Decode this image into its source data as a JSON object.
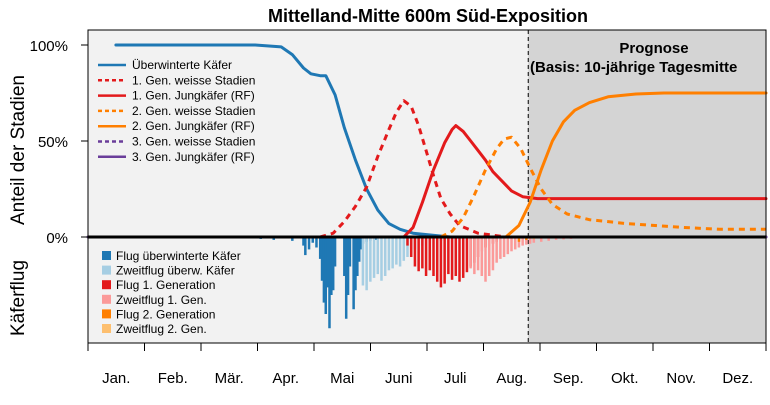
{
  "chart_data": {
    "type": "line",
    "title": "Mittelland-Mitte 600m Süd-Exposition",
    "forecast_label": [
      "Prognose",
      "(Basis: 10-jährige Tagesmitte"
    ],
    "upper_panel": {
      "ylabel": "Anteil der Stadien",
      "yticks": [
        "100%",
        "50%",
        "0%"
      ],
      "ylim": [
        0,
        1.06
      ],
      "series": [
        {
          "name": "Überwinterte Käfer",
          "color": "#1f78b4",
          "dash": "solid",
          "points": [
            [
              15,
              1.0
            ],
            [
              60,
              1.0
            ],
            [
              90,
              1.0
            ],
            [
              104,
              0.99
            ],
            [
              110,
              0.95
            ],
            [
              116,
              0.88
            ],
            [
              120,
              0.85
            ],
            [
              125,
              0.84
            ],
            [
              128,
              0.84
            ],
            [
              133,
              0.74
            ],
            [
              138,
              0.57
            ],
            [
              144,
              0.4
            ],
            [
              150,
              0.25
            ],
            [
              156,
              0.14
            ],
            [
              162,
              0.07
            ],
            [
              168,
              0.04
            ],
            [
              175,
              0.02
            ],
            [
              185,
              0.01
            ],
            [
              195,
              0.0
            ],
            [
              365,
              0.0
            ]
          ]
        },
        {
          "name": "1. Gen. weisse Stadien",
          "color": "#e31a1c",
          "dash": "dotted",
          "points": [
            [
              125,
              0.0
            ],
            [
              132,
              0.02
            ],
            [
              138,
              0.08
            ],
            [
              144,
              0.16
            ],
            [
              150,
              0.26
            ],
            [
              156,
              0.42
            ],
            [
              162,
              0.56
            ],
            [
              166,
              0.65
            ],
            [
              170,
              0.71
            ],
            [
              174,
              0.68
            ],
            [
              178,
              0.58
            ],
            [
              182,
              0.45
            ],
            [
              186,
              0.32
            ],
            [
              190,
              0.2
            ],
            [
              195,
              0.12
            ],
            [
              200,
              0.06
            ],
            [
              210,
              0.02
            ],
            [
              225,
              0.0
            ],
            [
              365,
              0.0
            ]
          ]
        },
        {
          "name": "1. Gen. Jungkäfer (RF)",
          "color": "#e31a1c",
          "dash": "solid",
          "points": [
            [
              170,
              0.0
            ],
            [
              175,
              0.05
            ],
            [
              180,
              0.18
            ],
            [
              186,
              0.35
            ],
            [
              192,
              0.49
            ],
            [
              196,
              0.56
            ],
            [
              198,
              0.58
            ],
            [
              202,
              0.55
            ],
            [
              206,
              0.5
            ],
            [
              210,
              0.45
            ],
            [
              214,
              0.4
            ],
            [
              218,
              0.34
            ],
            [
              222,
              0.3
            ],
            [
              228,
              0.24
            ],
            [
              234,
              0.21
            ],
            [
              242,
              0.2
            ],
            [
              260,
              0.2
            ],
            [
              300,
              0.2
            ],
            [
              365,
              0.2
            ]
          ]
        },
        {
          "name": "2. Gen. weisse Stadien",
          "color": "#ff7f00",
          "dash": "dotted",
          "points": [
            [
              190,
              0.0
            ],
            [
              196,
              0.03
            ],
            [
              202,
              0.1
            ],
            [
              208,
              0.22
            ],
            [
              214,
              0.35
            ],
            [
              220,
              0.46
            ],
            [
              224,
              0.51
            ],
            [
              228,
              0.52
            ],
            [
              233,
              0.46
            ],
            [
              238,
              0.36
            ],
            [
              244,
              0.25
            ],
            [
              250,
              0.17
            ],
            [
              258,
              0.12
            ],
            [
              270,
              0.09
            ],
            [
              290,
              0.07
            ],
            [
              320,
              0.05
            ],
            [
              340,
              0.04
            ],
            [
              365,
              0.04
            ]
          ]
        },
        {
          "name": "2. Gen. Jungkäfer (RF)",
          "color": "#ff7f00",
          "dash": "solid",
          "points": [
            [
              225,
              0.0
            ],
            [
              232,
              0.06
            ],
            [
              238,
              0.18
            ],
            [
              244,
              0.35
            ],
            [
              250,
              0.5
            ],
            [
              256,
              0.6
            ],
            [
              262,
              0.66
            ],
            [
              270,
              0.7
            ],
            [
              280,
              0.73
            ],
            [
              295,
              0.745
            ],
            [
              310,
              0.75
            ],
            [
              365,
              0.75
            ]
          ]
        },
        {
          "name": "3. Gen. weisse Stadien",
          "color": "#6a3d9a",
          "dash": "dotted",
          "points": [
            [
              0,
              0.0
            ],
            [
              365,
              0.0
            ]
          ]
        },
        {
          "name": "3. Gen. Jungkäfer (RF)",
          "color": "#6a3d9a",
          "dash": "solid",
          "points": [
            [
              0,
              0.0
            ],
            [
              365,
              0.0
            ]
          ]
        }
      ]
    },
    "lower_panel": {
      "ylabel": "Käferflug",
      "series": [
        {
          "name": "Flug überwinterte Käfer",
          "color": "#1f78b4"
        },
        {
          "name": "Zweitflug überw. Käfer",
          "color": "#a6cee3"
        },
        {
          "name": "Flug 1. Generation",
          "color": "#e31a1c"
        },
        {
          "name": "Zweitflug 1. Gen.",
          "color": "#fb9a99"
        },
        {
          "name": "Flug 2. Generation",
          "color": "#ff7f00"
        },
        {
          "name": "Zweitflug 2. Gen.",
          "color": "#fdbf6f"
        }
      ],
      "bars": [
        {
          "series": 0,
          "values": [
            [
              93,
              0.01
            ],
            [
              100,
              0.02
            ],
            [
              110,
              0.03
            ],
            [
              116,
              0.08
            ],
            [
              117,
              0.18
            ],
            [
              119,
              0.12
            ],
            [
              121,
              0.05
            ],
            [
              123,
              0.1
            ],
            [
              125,
              0.22
            ],
            [
              126,
              0.45
            ],
            [
              127,
              0.68
            ],
            [
              128,
              0.8
            ],
            [
              129,
              0.52
            ],
            [
              130,
              0.95
            ],
            [
              131,
              0.6
            ],
            [
              132,
              0.55
            ],
            [
              133,
              0.3
            ],
            [
              138,
              0.4
            ],
            [
              139,
              0.85
            ],
            [
              140,
              0.6
            ],
            [
              141,
              0.3
            ],
            [
              143,
              0.75
            ],
            [
              144,
              0.55
            ],
            [
              145,
              0.4
            ],
            [
              146,
              0.25
            ],
            [
              147,
              0.12
            ],
            [
              148,
              0.06
            ],
            [
              150,
              0.04
            ],
            [
              152,
              0.03
            ],
            [
              155,
              0.02
            ],
            [
              160,
              0.01
            ]
          ]
        },
        {
          "series": 1,
          "values": [
            [
              148,
              0.5
            ],
            [
              150,
              0.55
            ],
            [
              152,
              0.46
            ],
            [
              154,
              0.42
            ],
            [
              156,
              0.38
            ],
            [
              158,
              0.45
            ],
            [
              160,
              0.4
            ],
            [
              162,
              0.34
            ],
            [
              164,
              0.32
            ],
            [
              166,
              0.28
            ],
            [
              168,
              0.3
            ],
            [
              170,
              0.24
            ],
            [
              172,
              0.2
            ],
            [
              174,
              0.15
            ],
            [
              176,
              0.12
            ],
            [
              180,
              0.08
            ],
            [
              184,
              0.05
            ],
            [
              190,
              0.03
            ]
          ]
        },
        {
          "series": 2,
          "values": [
            [
              172,
              0.08
            ],
            [
              174,
              0.2
            ],
            [
              176,
              0.3
            ],
            [
              178,
              0.35
            ],
            [
              180,
              0.32
            ],
            [
              182,
              0.4
            ],
            [
              184,
              0.34
            ],
            [
              186,
              0.4
            ],
            [
              188,
              0.46
            ],
            [
              190,
              0.52
            ],
            [
              192,
              0.48
            ],
            [
              194,
              0.38
            ],
            [
              196,
              0.44
            ],
            [
              198,
              0.4
            ],
            [
              200,
              0.46
            ],
            [
              202,
              0.42
            ],
            [
              204,
              0.36
            ],
            [
              206,
              0.3
            ],
            [
              208,
              0.26
            ],
            [
              210,
              0.2
            ],
            [
              212,
              0.14
            ],
            [
              214,
              0.1
            ],
            [
              216,
              0.08
            ],
            [
              218,
              0.06
            ],
            [
              220,
              0.04
            ]
          ]
        },
        {
          "series": 3,
          "values": [
            [
              206,
              0.32
            ],
            [
              208,
              0.38
            ],
            [
              210,
              0.34
            ],
            [
              212,
              0.4
            ],
            [
              214,
              0.46
            ],
            [
              216,
              0.4
            ],
            [
              218,
              0.34
            ],
            [
              220,
              0.26
            ],
            [
              222,
              0.22
            ],
            [
              224,
              0.2
            ],
            [
              226,
              0.17
            ],
            [
              228,
              0.14
            ],
            [
              230,
              0.12
            ],
            [
              232,
              0.1
            ],
            [
              234,
              0.08
            ],
            [
              236,
              0.07
            ],
            [
              238,
              0.06
            ],
            [
              240,
              0.05
            ],
            [
              244,
              0.04
            ],
            [
              248,
              0.03
            ],
            [
              252,
              0.02
            ],
            [
              256,
              0.015
            ],
            [
              260,
              0.01
            ]
          ]
        },
        {
          "series": 4,
          "values": [
            [
              232,
              0.04
            ],
            [
              236,
              0.02
            ]
          ]
        },
        {
          "series": 5,
          "values": [
            [
              240,
              0.01
            ]
          ]
        }
      ]
    },
    "xlabel": "",
    "x_tick_labels": [
      "Jan.",
      "Feb.",
      "Mär.",
      "Apr.",
      "Mai",
      "Juni",
      "Juli",
      "Aug.",
      "Sep.",
      "Okt.",
      "Nov.",
      "Dez."
    ],
    "x_range_days": [
      0,
      365
    ],
    "forecast_start_day": 237,
    "colors": {
      "panel_bg": "#f2f2f2",
      "forecast_bg": "#d4d4d4"
    }
  }
}
